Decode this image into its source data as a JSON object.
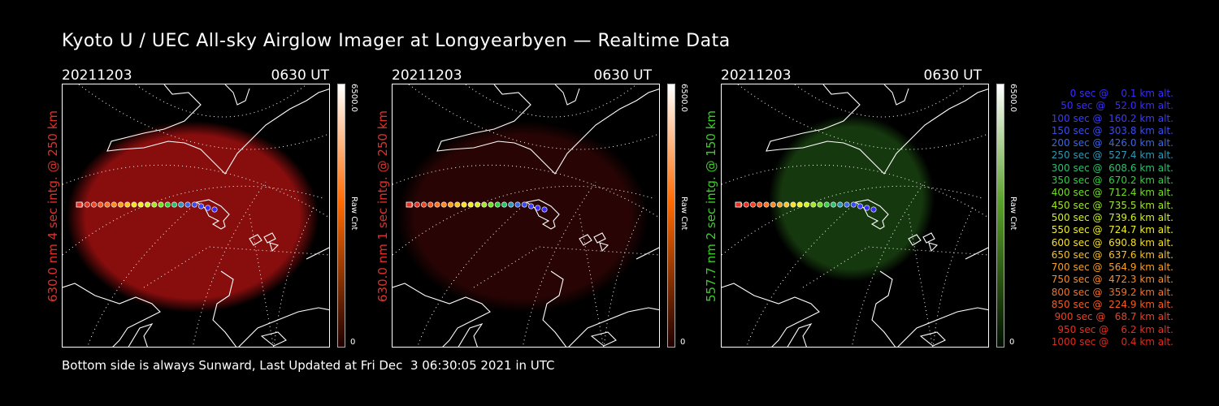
{
  "title": "Kyoto U / UEC All-sky Airglow Imager at Longyearbyen — Realtime Data",
  "panels": [
    {
      "date": "20211203",
      "time": "0630 UT",
      "ylabel": "630.0 nm 4 sec intg. @ 250 km",
      "label_color": "#e0302a",
      "glow_color": "#a01010",
      "glow_intensity": 0.85,
      "colorbar_max": "6500.0",
      "colorbar_unit": "Raw Cnt",
      "colorbar_min": "0",
      "colorbar_top_color": "#ffffff",
      "colorbar_mid_color": "#ff6a00",
      "colorbar_bottom_color": "#200000"
    },
    {
      "date": "20211203",
      "time": "0630 UT",
      "ylabel": "630.0 nm 1 sec intg. @ 250 km",
      "label_color": "#e0302a",
      "glow_color": "#4a0808",
      "glow_intensity": 0.55,
      "colorbar_max": "6500.0",
      "colorbar_unit": "Raw Cnt",
      "colorbar_min": "0",
      "colorbar_top_color": "#ffffff",
      "colorbar_mid_color": "#ff6a00",
      "colorbar_bottom_color": "#200000"
    },
    {
      "date": "20211203",
      "time": "0630 UT",
      "ylabel": "557.7 nm 2 sec intg. @ 150 km",
      "label_color": "#3ccc2a",
      "glow_color": "#1c4a12",
      "glow_intensity": 0.75,
      "colorbar_max": "6500.0",
      "colorbar_unit": "Raw Cnt",
      "colorbar_min": "0",
      "colorbar_top_color": "#ffffff",
      "colorbar_mid_color": "#5aa02a",
      "colorbar_bottom_color": "#001000"
    }
  ],
  "footer": "Bottom side is always Sunward, Last Updated at Fri Dec  3 06:30:05 2021 in UTC",
  "legend": [
    {
      "text": "   0 sec @    0.1 km alt.",
      "color": "#3a2cff"
    },
    {
      "text": "  50 sec @   52.0 km alt.",
      "color": "#3a2cff"
    },
    {
      "text": " 100 sec @  160.2 km alt.",
      "color": "#3a3cff"
    },
    {
      "text": " 150 sec @  303.8 km alt.",
      "color": "#3a4cf0"
    },
    {
      "text": " 200 sec @  426.0 km alt.",
      "color": "#3a66e8"
    },
    {
      "text": " 250 sec @  527.4 km alt.",
      "color": "#2a9ab8"
    },
    {
      "text": " 300 sec @  608.6 km alt.",
      "color": "#2ac070"
    },
    {
      "text": " 350 sec @  670.2 km alt.",
      "color": "#30d040"
    },
    {
      "text": " 400 sec @  712.4 km alt.",
      "color": "#70e020"
    },
    {
      "text": " 450 sec @  735.5 km alt.",
      "color": "#a0e820"
    },
    {
      "text": " 500 sec @  739.6 km alt.",
      "color": "#d0f020"
    },
    {
      "text": " 550 sec @  724.7 km alt.",
      "color": "#f0f020"
    },
    {
      "text": " 600 sec @  690.8 km alt.",
      "color": "#f8e020"
    },
    {
      "text": " 650 sec @  637.6 km alt.",
      "color": "#f8c020"
    },
    {
      "text": " 700 sec @  564.9 km alt.",
      "color": "#f8a020"
    },
    {
      "text": " 750 sec @  472.3 km alt.",
      "color": "#f88a20"
    },
    {
      "text": " 800 sec @  359.2 km alt.",
      "color": "#f87020"
    },
    {
      "text": " 850 sec @  224.9 km alt.",
      "color": "#f85a20"
    },
    {
      "text": " 900 sec @   68.7 km alt.",
      "color": "#f04020"
    },
    {
      "text": " 950 sec @    6.2 km alt.",
      "color": "#e83020"
    },
    {
      "text": "1000 sec @    0.4 km alt.",
      "color": "#e02a20"
    }
  ]
}
